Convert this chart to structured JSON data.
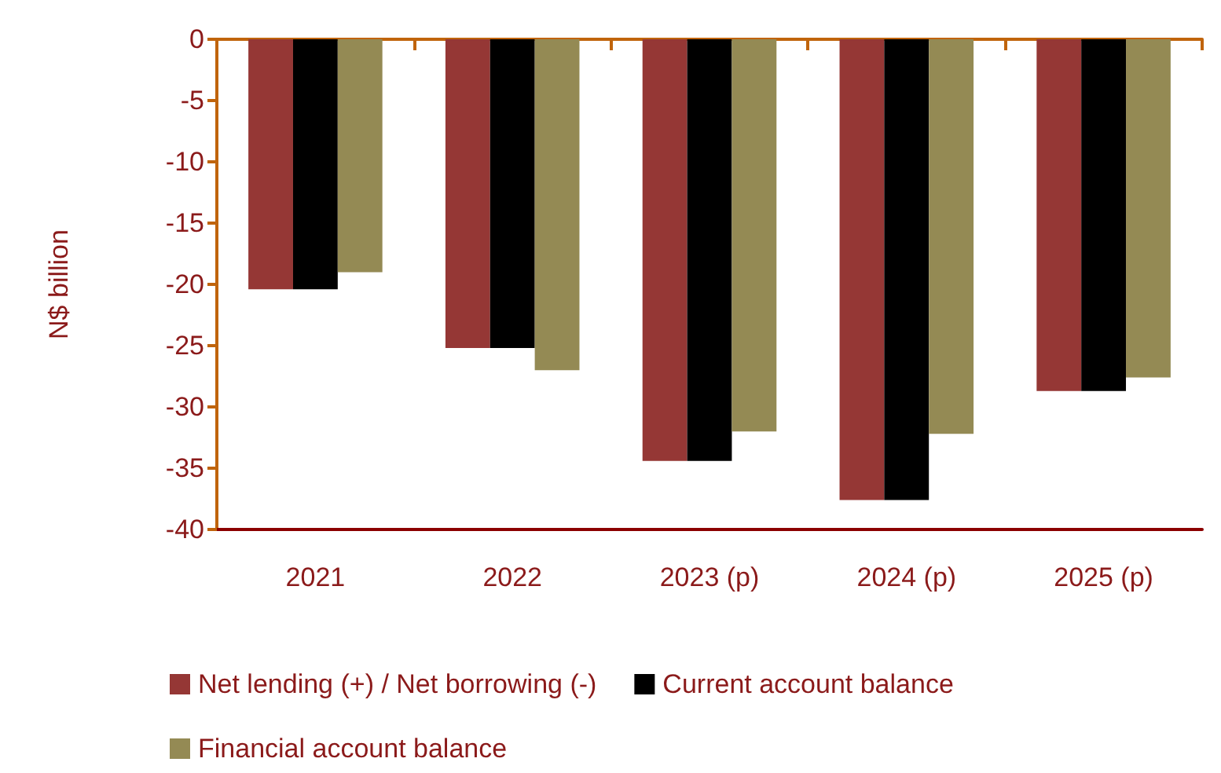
{
  "chart_data": {
    "type": "bar",
    "ylabel": "N$ billion",
    "categories": [
      "2021",
      "2022",
      "2023 (p)",
      "2024 (p)",
      "2025 (p)"
    ],
    "series": [
      {
        "name": "Net lending (+) / Net borrowing (-)",
        "color": "#953735",
        "values": [
          -20.4,
          -25.2,
          -34.4,
          -37.6,
          -28.7
        ]
      },
      {
        "name": "Current account balance",
        "color": "#000000",
        "values": [
          -20.4,
          -25.2,
          -34.4,
          -37.6,
          -28.7
        ]
      },
      {
        "name": "Financial account balance",
        "color": "#948a54",
        "values": [
          -19.0,
          -27.0,
          -32.0,
          -32.2,
          -27.6
        ]
      }
    ],
    "ylim": [
      -40,
      0
    ],
    "yticks": [
      -40,
      -35,
      -30,
      -25,
      -20,
      -15,
      -10,
      -5,
      0
    ],
    "grid": false,
    "legend": "bottom"
  }
}
